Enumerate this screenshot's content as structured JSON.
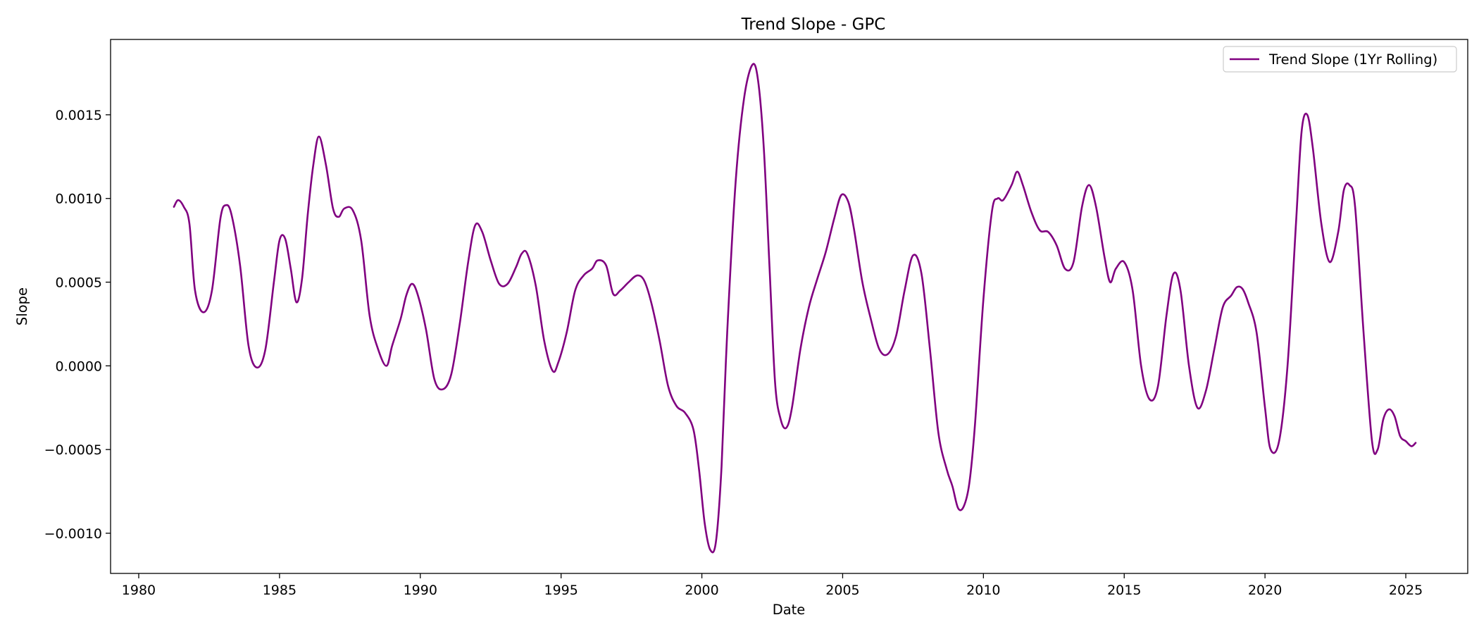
{
  "chart_data": {
    "type": "line",
    "title": "Trend Slope - GPC",
    "xlabel": "Date",
    "ylabel": "Slope",
    "xlim": [
      1979.0,
      2027.2
    ],
    "ylim": [
      -0.00124,
      0.00195
    ],
    "x_ticks": [
      1980,
      1985,
      1990,
      1995,
      2000,
      2005,
      2010,
      2015,
      2020,
      2025
    ],
    "x_tick_labels": [
      "1980",
      "1985",
      "1990",
      "1995",
      "2000",
      "2005",
      "2010",
      "2015",
      "2020",
      "2025"
    ],
    "y_ticks": [
      -0.001,
      -0.0005,
      0.0,
      0.0005,
      0.001,
      0.0015
    ],
    "y_tick_labels": [
      "−0.0010",
      "−0.0005",
      "0.0000",
      "0.0005",
      "0.0010",
      "0.0015"
    ],
    "grid": false,
    "legend_position": "top-right",
    "series": [
      {
        "name": "Trend Slope (1Yr Rolling)",
        "color": "#800080",
        "x": [
          1981.25,
          1981.4,
          1981.6,
          1981.8,
          1982.0,
          1982.3,
          1982.6,
          1982.9,
          1983.1,
          1983.3,
          1983.6,
          1983.9,
          1984.2,
          1984.5,
          1984.8,
          1985.0,
          1985.2,
          1985.4,
          1985.6,
          1985.8,
          1986.0,
          1986.2,
          1986.4,
          1986.65,
          1986.9,
          1987.1,
          1987.3,
          1987.6,
          1987.9,
          1988.2,
          1988.5,
          1988.8,
          1989.0,
          1989.3,
          1989.5,
          1989.7,
          1989.9,
          1990.2,
          1990.5,
          1990.8,
          1991.1,
          1991.4,
          1991.7,
          1991.95,
          1992.2,
          1992.5,
          1992.8,
          1993.1,
          1993.4,
          1993.6,
          1993.8,
          1994.1,
          1994.4,
          1994.7,
          1994.9,
          1995.2,
          1995.5,
          1995.8,
          1996.1,
          1996.3,
          1996.6,
          1996.85,
          1997.1,
          1997.4,
          1997.7,
          1997.95,
          1998.2,
          1998.5,
          1998.8,
          1999.1,
          1999.4,
          1999.7,
          1999.9,
          2000.1,
          2000.3,
          2000.5,
          2000.7,
          2000.9,
          2001.2,
          2001.5,
          2001.8,
          2002.0,
          2002.2,
          2002.4,
          2002.6,
          2002.8,
          2003.0,
          2003.2,
          2003.5,
          2003.8,
          2004.1,
          2004.4,
          2004.7,
          2004.95,
          2005.2,
          2005.4,
          2005.7,
          2006.0,
          2006.3,
          2006.6,
          2006.9,
          2007.2,
          2007.5,
          2007.8,
          2008.1,
          2008.4,
          2008.7,
          2008.9,
          2009.1,
          2009.3,
          2009.5,
          2009.7,
          2010.0,
          2010.3,
          2010.5,
          2010.7,
          2011.0,
          2011.2,
          2011.4,
          2011.7,
          2012.0,
          2012.3,
          2012.6,
          2012.9,
          2013.2,
          2013.5,
          2013.75,
          2014.0,
          2014.3,
          2014.5,
          2014.7,
          2015.0,
          2015.3,
          2015.6,
          2015.9,
          2016.2,
          2016.5,
          2016.75,
          2017.0,
          2017.3,
          2017.6,
          2017.9,
          2018.2,
          2018.5,
          2018.8,
          2019.0,
          2019.2,
          2019.4,
          2019.7,
          2020.0,
          2020.2,
          2020.5,
          2020.8,
          2021.1,
          2021.3,
          2021.5,
          2021.7,
          2022.0,
          2022.3,
          2022.6,
          2022.8,
          2023.0,
          2023.2,
          2023.5,
          2023.8,
          2024.0,
          2024.2,
          2024.4,
          2024.6,
          2024.8,
          2025.0,
          2025.2,
          2025.35
        ],
        "y": [
          0.00095,
          0.00099,
          0.00095,
          0.00085,
          0.00045,
          0.00032,
          0.00045,
          0.00088,
          0.00096,
          0.0009,
          0.0006,
          0.00012,
          -1e-05,
          0.0001,
          0.0005,
          0.00075,
          0.00076,
          0.00058,
          0.00038,
          0.00052,
          0.0009,
          0.0012,
          0.00137,
          0.0012,
          0.00094,
          0.00089,
          0.00094,
          0.00093,
          0.00075,
          0.0003,
          0.0001,
          0.0,
          0.00012,
          0.00028,
          0.00042,
          0.00049,
          0.00043,
          0.00022,
          -8e-05,
          -0.00014,
          -5e-05,
          0.00025,
          0.00062,
          0.00084,
          0.0008,
          0.00063,
          0.00049,
          0.00049,
          0.00059,
          0.00067,
          0.00067,
          0.00048,
          0.00015,
          -3e-05,
          2e-05,
          0.0002,
          0.00045,
          0.00054,
          0.00058,
          0.00063,
          0.0006,
          0.00043,
          0.00045,
          0.0005,
          0.00054,
          0.00051,
          0.00038,
          0.00015,
          -0.00012,
          -0.00024,
          -0.00028,
          -0.00038,
          -0.00062,
          -0.00094,
          -0.0011,
          -0.00105,
          -0.0006,
          0.0002,
          0.0011,
          0.0016,
          0.0018,
          0.0017,
          0.0013,
          0.0006,
          -0.0001,
          -0.00032,
          -0.00037,
          -0.00025,
          0.0001,
          0.00035,
          0.00052,
          0.00068,
          0.00088,
          0.00102,
          0.00098,
          0.00082,
          0.0005,
          0.00028,
          0.0001,
          7e-05,
          0.00018,
          0.00045,
          0.00066,
          0.00055,
          0.0001,
          -0.0004,
          -0.00062,
          -0.00072,
          -0.00085,
          -0.00084,
          -0.0007,
          -0.00035,
          0.0004,
          0.00092,
          0.001,
          0.00099,
          0.00108,
          0.00116,
          0.00108,
          0.00092,
          0.00081,
          0.0008,
          0.00072,
          0.00058,
          0.00062,
          0.00095,
          0.00108,
          0.00095,
          0.00065,
          0.0005,
          0.00058,
          0.00062,
          0.00045,
          0.0,
          -0.0002,
          -0.00012,
          0.0003,
          0.00055,
          0.00045,
          0.0,
          -0.00025,
          -0.00015,
          0.0001,
          0.00035,
          0.00042,
          0.00047,
          0.00046,
          0.00038,
          0.0002,
          -0.00025,
          -0.0005,
          -0.00045,
          0.0,
          0.00085,
          0.0014,
          0.0015,
          0.0013,
          0.00085,
          0.00062,
          0.0008,
          0.00105,
          0.00108,
          0.00095,
          0.0002,
          -0.00045,
          -0.0005,
          -0.00032,
          -0.00026,
          -0.0003,
          -0.00042,
          -0.00045,
          -0.00048,
          -0.00046
        ]
      }
    ]
  }
}
